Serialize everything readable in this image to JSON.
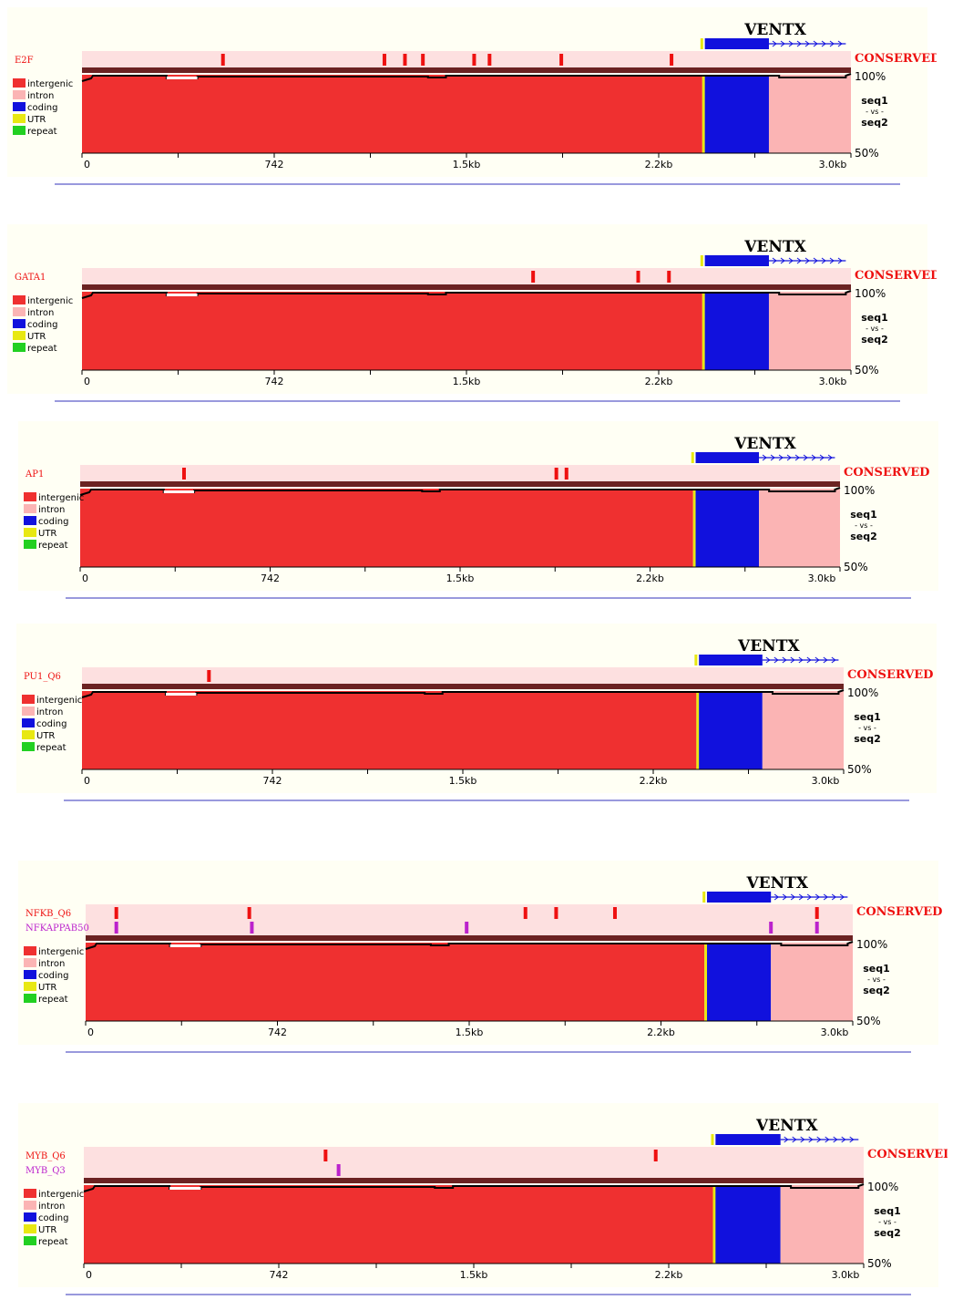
{
  "legend": {
    "intergenic": "intergenic",
    "intron": "intron",
    "coding": "coding",
    "utr": "UTR",
    "repeat": "repeat"
  },
  "axis": {
    "y_top": "100%",
    "y_bottom": "50%",
    "seq1": "seq1",
    "vs": "- vs -",
    "seq2": "seq2",
    "conserved": "CONSERVED",
    "gene": "VENTX",
    "ticks": [
      "0",
      "742",
      "1.5kb",
      "2.2kb",
      "3.0kb"
    ]
  },
  "colors": {
    "intergenic": "#ef3030",
    "intron": "#fbb4b4",
    "coding": "#1111dd",
    "utr": "#e8e812",
    "repeat": "#22d022",
    "tfbs_primary": "#ee1111",
    "tfbs_secondary": "#bb22cc",
    "track_bg": "#fde0e0",
    "panel_bg": "#fffff4"
  },
  "chart_data": [
    {
      "type": "area",
      "tracks": [
        {
          "name": "E2F",
          "color": "#ee1111",
          "positions_kb": [
            0.55,
            1.18,
            1.26,
            1.33,
            1.53,
            1.59,
            1.87,
            2.3
          ]
        }
      ],
      "regions_kb": {
        "intergenic": [
          0,
          2.42
        ],
        "utr": [
          2.42,
          2.43
        ],
        "coding": [
          2.43,
          2.68
        ],
        "intron": [
          2.68,
          3.0
        ]
      },
      "gene": {
        "name": "VENTX",
        "utr_kb": [
          2.42,
          2.43
        ],
        "exon_kb": [
          2.43,
          2.68
        ],
        "arrow_end_kb": 2.98
      },
      "xlim_kb": [
        0,
        3.0
      ],
      "ylim_pct": [
        50,
        100
      ]
    },
    {
      "type": "area",
      "tracks": [
        {
          "name": "GATA1",
          "color": "#ee1111",
          "positions_kb": [
            1.76,
            2.17,
            2.29
          ]
        }
      ],
      "regions_kb": {
        "intergenic": [
          0,
          2.42
        ],
        "utr": [
          2.42,
          2.43
        ],
        "coding": [
          2.43,
          2.68
        ],
        "intron": [
          2.68,
          3.0
        ]
      },
      "gene": {
        "name": "VENTX",
        "utr_kb": [
          2.42,
          2.43
        ],
        "exon_kb": [
          2.43,
          2.68
        ],
        "arrow_end_kb": 2.98
      },
      "xlim_kb": [
        0,
        3.0
      ],
      "ylim_pct": [
        50,
        100
      ]
    },
    {
      "type": "area",
      "tracks": [
        {
          "name": "AP1",
          "color": "#ee1111",
          "positions_kb": [
            0.41,
            1.88,
            1.92
          ]
        }
      ],
      "regions_kb": {
        "intergenic": [
          0,
          2.42
        ],
        "utr": [
          2.42,
          2.43
        ],
        "coding": [
          2.43,
          2.68
        ],
        "intron": [
          2.68,
          3.0
        ]
      },
      "gene": {
        "name": "VENTX",
        "utr_kb": [
          2.42,
          2.43
        ],
        "exon_kb": [
          2.43,
          2.68
        ],
        "arrow_end_kb": 2.98
      },
      "xlim_kb": [
        0,
        3.0
      ],
      "ylim_pct": [
        50,
        100
      ]
    },
    {
      "type": "area",
      "tracks": [
        {
          "name": "PU1_Q6",
          "color": "#ee1111",
          "positions_kb": [
            0.5
          ]
        }
      ],
      "regions_kb": {
        "intergenic": [
          0,
          2.42
        ],
        "utr": [
          2.42,
          2.43
        ],
        "coding": [
          2.43,
          2.68
        ],
        "intron": [
          2.68,
          3.0
        ]
      },
      "gene": {
        "name": "VENTX",
        "utr_kb": [
          2.42,
          2.43
        ],
        "exon_kb": [
          2.43,
          2.68
        ],
        "arrow_end_kb": 2.98
      },
      "xlim_kb": [
        0,
        3.0
      ],
      "ylim_pct": [
        50,
        100
      ]
    },
    {
      "type": "area",
      "tracks": [
        {
          "name": "NFKB_Q6",
          "color": "#ee1111",
          "positions_kb": [
            0.12,
            0.64,
            1.72,
            1.84,
            2.07,
            2.86
          ]
        },
        {
          "name": "NFKAPPAB50",
          "color": "#bb22cc",
          "positions_kb": [
            0.12,
            0.65,
            1.49,
            2.68,
            2.86
          ]
        }
      ],
      "regions_kb": {
        "intergenic": [
          0,
          2.42
        ],
        "utr": [
          2.42,
          2.43
        ],
        "coding": [
          2.43,
          2.68
        ],
        "intron": [
          2.68,
          3.0
        ]
      },
      "gene": {
        "name": "VENTX",
        "utr_kb": [
          2.42,
          2.43
        ],
        "exon_kb": [
          2.43,
          2.68
        ],
        "arrow_end_kb": 2.98
      },
      "xlim_kb": [
        0,
        3.0
      ],
      "ylim_pct": [
        50,
        100
      ]
    },
    {
      "type": "area",
      "tracks": [
        {
          "name": "MYB_Q6",
          "color": "#ee1111",
          "positions_kb": [
            0.93,
            2.2
          ]
        },
        {
          "name": "MYB_Q3",
          "color": "#bb22cc",
          "positions_kb": [
            0.98
          ]
        }
      ],
      "regions_kb": {
        "intergenic": [
          0,
          2.42
        ],
        "utr": [
          2.42,
          2.43
        ],
        "coding": [
          2.43,
          2.68
        ],
        "intron": [
          2.68,
          3.0
        ]
      },
      "gene": {
        "name": "VENTX",
        "utr_kb": [
          2.42,
          2.43
        ],
        "exon_kb": [
          2.43,
          2.68
        ],
        "arrow_end_kb": 2.98
      },
      "xlim_kb": [
        0,
        3.0
      ],
      "ylim_pct": [
        50,
        100
      ]
    }
  ]
}
